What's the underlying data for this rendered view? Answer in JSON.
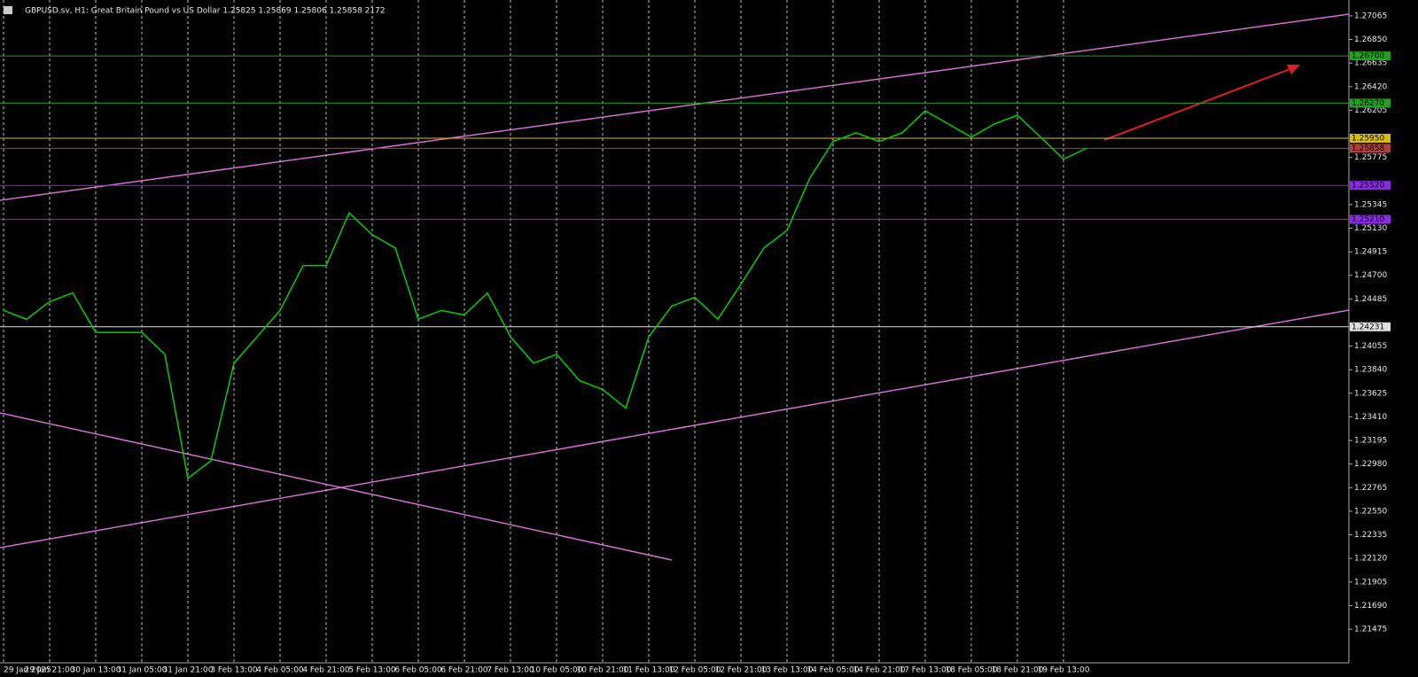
{
  "chart_data": {
    "type": "line",
    "title": "GBPUSD.sv, H1:  Great Britain Pound vs US Dollar  1.25825 1.25869 1.25806 1.25858  2172",
    "categories": [
      "29 Jan 2025",
      null,
      "29 Jan 21:00",
      null,
      "30 Jan 13:00",
      null,
      "31 Jan 05:00",
      null,
      "31 Jan 21:00",
      null,
      "3 Feb 13:00",
      null,
      "4 Feb 05:00",
      null,
      "4 Feb 21:00",
      null,
      "5 Feb 13:00",
      null,
      "6 Feb 05:00",
      null,
      "6 Feb 21:00",
      null,
      "7 Feb 13:00",
      null,
      "10 Feb 05:00",
      null,
      "10 Feb 21:00",
      null,
      "11 Feb 13:00",
      null,
      "12 Feb 05:00",
      null,
      "12 Feb 21:00",
      null,
      "13 Feb 13:00",
      null,
      "14 Feb 05:00",
      null,
      "14 Feb 21:00",
      null,
      "17 Feb 13:00",
      null,
      "18 Feb 05:00",
      null,
      "18 Feb 21:00",
      null,
      "19 Feb 13:00",
      null
    ],
    "series": [
      {
        "name": "GBPUSD",
        "color": "#00d000",
        "values": [
          1.2438,
          1.243,
          1.2446,
          1.2454,
          1.2418,
          1.2418,
          1.2418,
          1.2398,
          1.2285,
          1.2301,
          1.239,
          1.2414,
          1.2438,
          1.2479,
          1.2479,
          1.2527,
          1.2507,
          1.2495,
          1.243,
          1.2438,
          1.2434,
          1.2454,
          1.2414,
          1.239,
          1.2398,
          1.2374,
          1.2366,
          1.2349,
          1.2414,
          1.2442,
          1.245,
          1.243,
          1.2462,
          1.2495,
          1.2511,
          1.2559,
          1.2592,
          1.26,
          1.2592,
          1.26,
          1.262,
          1.2608,
          1.2596,
          1.2608,
          1.2616,
          1.2596,
          1.2576,
          1.25858
        ]
      }
    ],
    "ylim": [
      1.21168,
      1.2721
    ],
    "yticks": [
      {
        "value": 1.27065,
        "label": "1.27065"
      },
      {
        "value": 1.2685,
        "label": "1.26850"
      },
      {
        "value": 1.26635,
        "label": "1.26635"
      },
      {
        "value": 1.2642,
        "label": "1.26420"
      },
      {
        "value": 1.26205,
        "label": "1.26205"
      },
      {
        "value": 1.25775,
        "label": "1.25775"
      },
      {
        "value": 1.25345,
        "label": "1.25345"
      },
      {
        "value": 1.2513,
        "label": "1.25130"
      },
      {
        "value": 1.24915,
        "label": "1.24915"
      },
      {
        "value": 1.247,
        "label": "1.24700"
      },
      {
        "value": 1.24485,
        "label": "1.24485"
      },
      {
        "value": 1.24055,
        "label": "1.24055"
      },
      {
        "value": 1.2384,
        "label": "1.23840"
      },
      {
        "value": 1.23625,
        "label": "1.23625"
      },
      {
        "value": 1.2341,
        "label": "1.23410"
      },
      {
        "value": 1.23195,
        "label": "1.23195"
      },
      {
        "value": 1.2298,
        "label": "1.22980"
      },
      {
        "value": 1.22765,
        "label": "1.22765"
      },
      {
        "value": 1.2255,
        "label": "1.22550"
      },
      {
        "value": 1.22335,
        "label": "1.22335"
      },
      {
        "value": 1.2212,
        "label": "1.22120"
      },
      {
        "value": 1.21905,
        "label": "1.21905"
      },
      {
        "value": 1.2169,
        "label": "1.21690"
      },
      {
        "value": 1.21475,
        "label": "1.21475"
      }
    ],
    "levels": [
      {
        "value": 1.267,
        "label": "1.26700",
        "color": "#1fa01f"
      },
      {
        "value": 1.2627,
        "label": "1.26270",
        "color": "#1fa01f"
      },
      {
        "value": 1.2595,
        "label": "1.25950",
        "color": "#d8c000"
      },
      {
        "value": 1.25858,
        "label": "1.25858",
        "color": "#b04040"
      },
      {
        "value": 1.2552,
        "label": "1.25520",
        "color": "#8a2be2"
      },
      {
        "value": 1.2521,
        "label": "1.25210",
        "color": "#8a2be2"
      },
      {
        "value": 1.24231,
        "label": "1.24231",
        "color": "#e0e0e0"
      }
    ],
    "grid": true
  }
}
